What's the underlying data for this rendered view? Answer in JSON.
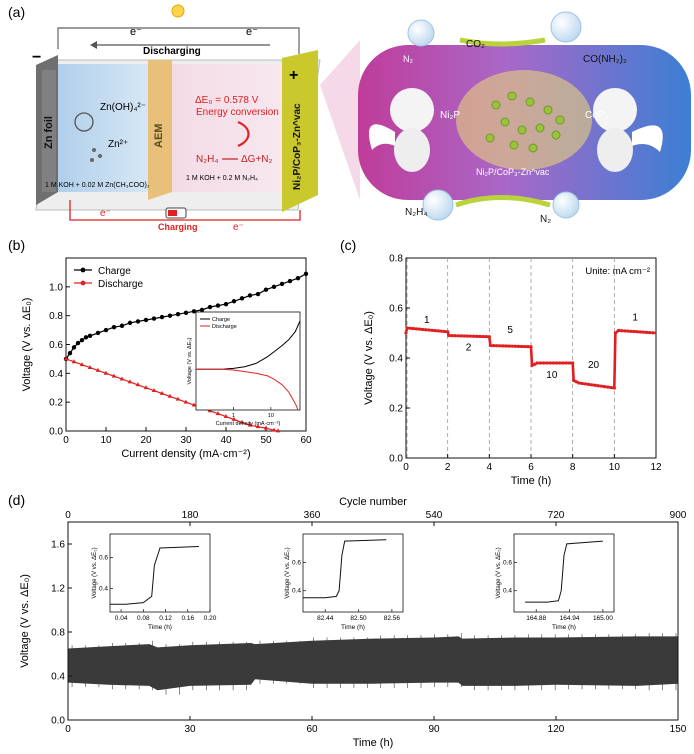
{
  "panel_labels": {
    "a": "(a)",
    "b": "(b)",
    "c": "(c)",
    "d": "(d)"
  },
  "schematic": {
    "electron_top_left": "e⁻",
    "electron_top_right": "e⁻",
    "discharging": "Discharging",
    "plus": "+",
    "minus": "−",
    "zn_foil": "Zn foil",
    "zn_oh4": "Zn(OH)₄²⁻",
    "zn2plus": "Zn²⁺",
    "aem": "AEM",
    "delta_eg": "ΔE₀ = 0.578 V",
    "energy_conversion": "Energy conversion",
    "n2h4_reaction_left": "N₂H₄",
    "n2h4_reaction_right": "ΔG+N₂",
    "cathode_label": "Ni₂P/CoP₃-Zn^vac",
    "electrolyte_left": "1 M KOH + 0.02 M Zn(CH₃COO)₂",
    "electrolyte_right": "1 M KOH + 0.2 M N₂H₄",
    "electron_bottom_left": "e⁻",
    "electron_bottom_right": "e⁻",
    "charging": "Charging",
    "bubble_n2": "N₂",
    "bubble_co2": "CO₂",
    "bubble_urea": "CO(NH₂)₂",
    "ni2p": "Ni₂P",
    "cop3": "CoP₃",
    "catalyst": "Ni₂P/CoP₃-Zn^vac",
    "bubble_n2h4": "N₂H₄",
    "bubble_n2_bottom": "N₂"
  },
  "chart_data": [
    {
      "id": "b",
      "type": "line",
      "xlabel": "Current density (mA·cm⁻²)",
      "ylabel": "Voltage (V vs. ΔE₀)",
      "xlim": [
        0,
        60
      ],
      "ylim": [
        0,
        1.2
      ],
      "xticks": [
        "0",
        "10",
        "20",
        "30",
        "40",
        "50",
        "60"
      ],
      "yticks": [
        "0.0",
        "0.2",
        "0.4",
        "0.6",
        "0.8",
        "1.0"
      ],
      "legend_position": "top-left",
      "series": [
        {
          "name": "Charge",
          "color": "#000000",
          "x": [
            0,
            1,
            2,
            3,
            4,
            5,
            6,
            8,
            10,
            12,
            14,
            16,
            18,
            20,
            22,
            24,
            26,
            28,
            30,
            32,
            34,
            36,
            38,
            40,
            42,
            44,
            46,
            48,
            50,
            52,
            54,
            56,
            58,
            60
          ],
          "y": [
            0.5,
            0.54,
            0.58,
            0.61,
            0.63,
            0.65,
            0.66,
            0.68,
            0.7,
            0.72,
            0.73,
            0.75,
            0.76,
            0.77,
            0.78,
            0.79,
            0.8,
            0.81,
            0.82,
            0.83,
            0.84,
            0.86,
            0.87,
            0.88,
            0.9,
            0.92,
            0.94,
            0.95,
            0.98,
            1.0,
            1.02,
            1.04,
            1.06,
            1.09
          ]
        },
        {
          "name": "Discharge",
          "color": "#e02020",
          "x": [
            0,
            2,
            4,
            6,
            8,
            10,
            12,
            14,
            16,
            18,
            20,
            22,
            24,
            26,
            28,
            30,
            32,
            34,
            36,
            38,
            40,
            42,
            44,
            46,
            48,
            50,
            52,
            53
          ],
          "y": [
            0.5,
            0.48,
            0.46,
            0.44,
            0.42,
            0.4,
            0.38,
            0.36,
            0.34,
            0.32,
            0.3,
            0.28,
            0.26,
            0.24,
            0.22,
            0.2,
            0.18,
            0.16,
            0.14,
            0.12,
            0.1,
            0.08,
            0.06,
            0.04,
            0.03,
            0.02,
            0.005,
            0.0
          ]
        }
      ],
      "inset": {
        "xlabel": "Current density (mA·cm⁻²)",
        "ylabel": "Voltage (V vs. ΔE₀)",
        "xscale": "log",
        "xlim": [
          0.1,
          60
        ],
        "xticks": [
          "1",
          "10"
        ],
        "legend": [
          "Charge",
          "Discharge"
        ],
        "series": [
          {
            "name": "Charge",
            "color": "#000000",
            "x": [
              0.1,
              0.3,
              0.5,
              1,
              2,
              4,
              8,
              12,
              20,
              30,
              45,
              60
            ],
            "y": [
              0.5,
              0.5,
              0.5,
              0.51,
              0.53,
              0.57,
              0.65,
              0.71,
              0.79,
              0.86,
              0.96,
              1.09
            ]
          },
          {
            "name": "Discharge",
            "color": "#e02020",
            "x": [
              0.1,
              0.3,
              0.5,
              1,
              2,
              4,
              8,
              12,
              20,
              30,
              40,
              48,
              53
            ],
            "y": [
              0.5,
              0.5,
              0.5,
              0.49,
              0.47,
              0.45,
              0.42,
              0.38,
              0.31,
              0.22,
              0.12,
              0.05,
              0.0
            ]
          }
        ]
      }
    },
    {
      "id": "c",
      "type": "line",
      "xlabel": "Time (h)",
      "ylabel": "Voltage (V vs. ΔE₀)",
      "xlim": [
        0,
        12
      ],
      "ylim": [
        0,
        0.8
      ],
      "xticks": [
        "0",
        "2",
        "4",
        "6",
        "8",
        "10",
        "12"
      ],
      "yticks": [
        "0.0",
        "0.2",
        "0.4",
        "0.6",
        "0.8"
      ],
      "annotation": "Unite: mA cm⁻²",
      "segment_boundaries": [
        2,
        4,
        6,
        8,
        10
      ],
      "series": [
        {
          "name": "Rate test",
          "color": "#e02020",
          "x": [
            0,
            0.05,
            2,
            2.05,
            4,
            4.05,
            6,
            6.05,
            6.3,
            8,
            8.05,
            8.3,
            10,
            10.05,
            10.2,
            12
          ],
          "y": [
            0.5,
            0.52,
            0.505,
            0.49,
            0.485,
            0.45,
            0.445,
            0.37,
            0.38,
            0.38,
            0.31,
            0.3,
            0.28,
            0.5,
            0.51,
            0.5
          ]
        }
      ],
      "labels": [
        {
          "text": "1",
          "x": 1,
          "y": 0.54
        },
        {
          "text": "2",
          "x": 3,
          "y": 0.43
        },
        {
          "text": "5",
          "x": 5,
          "y": 0.5
        },
        {
          "text": "10",
          "x": 7,
          "y": 0.32
        },
        {
          "text": "20",
          "x": 9,
          "y": 0.36
        },
        {
          "text": "1",
          "x": 11,
          "y": 0.55
        }
      ]
    },
    {
      "id": "d",
      "type": "area",
      "xlabel": "Time (h)",
      "ylabel": "Voltage (V vs. ΔE₀)",
      "top_axis_label": "Cycle number",
      "xlim": [
        0,
        150
      ],
      "ylim": [
        0,
        1.8
      ],
      "xticks": [
        "0",
        "30",
        "60",
        "90",
        "120",
        "150"
      ],
      "top_ticks": [
        "0",
        "180",
        "360",
        "540",
        "720",
        "900"
      ],
      "yticks": [
        "0.0",
        "0.4",
        "0.8",
        "1.2",
        "1.6"
      ],
      "band_color": "#3a3a3a",
      "band": {
        "x": [
          0,
          10,
          20,
          22,
          30,
          45,
          46,
          60,
          75,
          90,
          96,
          97,
          110,
          120,
          140,
          150
        ],
        "upper": [
          0.65,
          0.67,
          0.69,
          0.66,
          0.68,
          0.7,
          0.69,
          0.72,
          0.74,
          0.75,
          0.76,
          0.74,
          0.75,
          0.75,
          0.76,
          0.76
        ],
        "lower": [
          0.34,
          0.32,
          0.31,
          0.27,
          0.31,
          0.32,
          0.37,
          0.33,
          0.33,
          0.34,
          0.34,
          0.31,
          0.31,
          0.32,
          0.31,
          0.33
        ]
      },
      "insets": [
        {
          "xticks": [
            "0.04",
            "0.08",
            "0.12",
            "0.16",
            "0.20"
          ],
          "xlim": [
            0.02,
            0.2
          ],
          "xlabel": "Time (h)",
          "ylabel": "Voltage (V vs. ΔE₀)",
          "ylim": [
            0.25,
            0.75
          ],
          "yticks": [
            "0.4",
            "0.6"
          ],
          "x": [
            0.02,
            0.05,
            0.08,
            0.095,
            0.1,
            0.11,
            0.18
          ],
          "y": [
            0.3,
            0.3,
            0.31,
            0.35,
            0.55,
            0.66,
            0.67
          ]
        },
        {
          "xticks": [
            "82.44",
            "82.50",
            "82.56"
          ],
          "xlim": [
            82.4,
            82.58
          ],
          "xlabel": "Time (h)",
          "ylabel": "Voltage (V vs. ΔE₀)",
          "ylim": [
            0.25,
            0.8
          ],
          "yticks": [
            "0.4",
            "0.6"
          ],
          "x": [
            82.4,
            82.44,
            82.46,
            82.465,
            82.47,
            82.475,
            82.55
          ],
          "y": [
            0.35,
            0.35,
            0.36,
            0.4,
            0.65,
            0.75,
            0.76
          ]
        },
        {
          "xticks": [
            "164.88",
            "164.94",
            "165.00"
          ],
          "xlim": [
            164.84,
            165.02
          ],
          "xlabel": "Time (h)",
          "ylabel": "Voltage (V vs. ΔE₀)",
          "ylim": [
            0.25,
            0.8
          ],
          "yticks": [
            "0.4",
            "0.6"
          ],
          "x": [
            164.86,
            164.9,
            164.92,
            164.925,
            164.93,
            164.935,
            165.0
          ],
          "y": [
            0.32,
            0.32,
            0.33,
            0.4,
            0.65,
            0.73,
            0.75
          ]
        }
      ]
    }
  ]
}
